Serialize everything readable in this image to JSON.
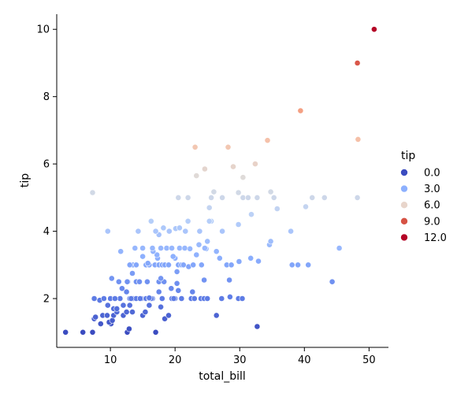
{
  "chart_data": {
    "type": "scatter",
    "xlabel": "total_bill",
    "ylabel": "tip",
    "xlim": [
      1.7,
      53.0
    ],
    "ylim": [
      0.55,
      10.45
    ],
    "xticks": [
      10,
      20,
      30,
      40,
      50
    ],
    "yticks": [
      2,
      4,
      6,
      8,
      10
    ],
    "grid": false,
    "hue": {
      "variable": "tip",
      "palette": "coolwarm",
      "range": [
        1.0,
        10.0
      ],
      "legend_title": "tip",
      "legend_placement": "right",
      "legend_entries": [
        {
          "label": "0.0",
          "value": 0.0,
          "color": "#3b4cc0"
        },
        {
          "label": "3.0",
          "value": 3.0,
          "color": "#8db0fe"
        },
        {
          "label": "6.0",
          "value": 6.0,
          "color": "#e8d5cb"
        },
        {
          "label": "9.0",
          "value": 9.0,
          "color": "#d65244"
        },
        {
          "label": "12.0",
          "value": 12.0,
          "color": "#b40426"
        }
      ]
    },
    "points": [
      [
        3.07,
        1.0
      ],
      [
        5.75,
        1.0
      ],
      [
        7.25,
        1.0
      ],
      [
        12.6,
        1.0
      ],
      [
        17.0,
        1.0
      ],
      [
        7.25,
        5.15
      ],
      [
        7.5,
        1.4
      ],
      [
        7.7,
        1.45
      ],
      [
        8.5,
        1.25
      ],
      [
        8.8,
        1.5
      ],
      [
        9.5,
        1.5
      ],
      [
        9.8,
        1.3
      ],
      [
        10.1,
        1.25
      ],
      [
        10.3,
        1.35
      ],
      [
        10.5,
        1.5
      ],
      [
        11.0,
        1.6
      ],
      [
        12.0,
        1.5
      ],
      [
        12.5,
        1.6
      ],
      [
        13.0,
        1.8
      ],
      [
        13.4,
        1.6
      ],
      [
        15.0,
        1.5
      ],
      [
        15.4,
        1.6
      ],
      [
        16.0,
        1.8
      ],
      [
        18.4,
        1.4
      ],
      [
        19.0,
        1.5
      ],
      [
        26.4,
        1.5
      ],
      [
        32.7,
        1.17
      ],
      [
        7.5,
        2.0
      ],
      [
        8.35,
        1.95
      ],
      [
        9.0,
        2.0
      ],
      [
        9.6,
        1.8
      ],
      [
        10.0,
        2.0
      ],
      [
        10.5,
        1.7
      ],
      [
        11.5,
        2.0
      ],
      [
        12.5,
        2.2
      ],
      [
        13.0,
        2.0
      ],
      [
        13.5,
        2.0
      ],
      [
        14.0,
        2.0
      ],
      [
        14.8,
        2.0
      ],
      [
        15.5,
        2.0
      ],
      [
        16.0,
        2.0
      ],
      [
        16.5,
        2.0
      ],
      [
        17.5,
        2.2
      ],
      [
        18.0,
        2.0
      ],
      [
        19.5,
        2.0
      ],
      [
        20.0,
        2.0
      ],
      [
        20.5,
        2.24
      ],
      [
        21.0,
        2.0
      ],
      [
        22.5,
        2.0
      ],
      [
        23.0,
        2.0
      ],
      [
        24.0,
        2.0
      ],
      [
        24.5,
        2.0
      ],
      [
        25.0,
        2.0
      ],
      [
        27.2,
        2.0
      ],
      [
        28.5,
        2.05
      ],
      [
        29.8,
        2.0
      ],
      [
        30.4,
        2.0
      ],
      [
        10.2,
        2.6
      ],
      [
        11.8,
        2.3
      ],
      [
        12.7,
        2.5
      ],
      [
        13.4,
        2.75
      ],
      [
        14.0,
        2.5
      ],
      [
        15.7,
        2.5
      ],
      [
        17.5,
        2.5
      ],
      [
        17.8,
        2.6
      ],
      [
        18.3,
        2.5
      ],
      [
        19.4,
        2.3
      ],
      [
        20.3,
        2.45
      ],
      [
        22.7,
        2.2
      ],
      [
        24.5,
        2.55
      ],
      [
        28.4,
        2.55
      ],
      [
        44.3,
        2.5
      ],
      [
        10.7,
        2.0
      ],
      [
        11.0,
        1.7
      ],
      [
        12.0,
        1.8
      ],
      [
        13.2,
        2.0
      ],
      [
        14.6,
        2.0
      ],
      [
        16.3,
        2.0
      ],
      [
        17.8,
        1.75
      ],
      [
        18.0,
        2.0
      ],
      [
        19.8,
        2.0
      ],
      [
        12.9,
        1.1
      ],
      [
        16.0,
        2.02
      ],
      [
        11.6,
        3.4
      ],
      [
        9.6,
        4.0
      ],
      [
        13.5,
        3.0
      ],
      [
        13.8,
        3.5
      ],
      [
        14.0,
        3.0
      ],
      [
        14.5,
        2.5
      ],
      [
        15.0,
        3.25
      ],
      [
        15.5,
        3.0
      ],
      [
        16.0,
        3.0
      ],
      [
        16.3,
        4.3
      ],
      [
        16.5,
        3.5
      ],
      [
        16.9,
        3.0
      ],
      [
        17.0,
        4.0
      ],
      [
        17.3,
        3.2
      ],
      [
        17.5,
        3.0
      ],
      [
        17.8,
        3.5
      ],
      [
        18.0,
        3.0
      ],
      [
        18.2,
        4.1
      ],
      [
        18.4,
        3.0
      ],
      [
        18.7,
        3.5
      ],
      [
        19.0,
        3.0
      ],
      [
        19.5,
        3.5
      ],
      [
        20.0,
        3.2
      ],
      [
        20.3,
        2.8
      ],
      [
        20.5,
        3.0
      ],
      [
        20.7,
        3.5
      ],
      [
        21.0,
        3.0
      ],
      [
        21.5,
        3.5
      ],
      [
        22.0,
        4.3
      ],
      [
        22.3,
        3.48
      ],
      [
        22.8,
        3.0
      ],
      [
        23.3,
        3.3
      ],
      [
        23.7,
        3.6
      ],
      [
        24.1,
        3.0
      ],
      [
        24.6,
        3.5
      ],
      [
        25.0,
        3.7
      ],
      [
        25.6,
        4.3
      ],
      [
        26.4,
        3.4
      ],
      [
        26.9,
        3.2
      ],
      [
        28.0,
        3.0
      ],
      [
        28.7,
        3.0
      ],
      [
        29.9,
        3.1
      ],
      [
        31.7,
        3.2
      ],
      [
        32.9,
        3.11
      ],
      [
        34.6,
        3.6
      ],
      [
        34.8,
        3.7
      ],
      [
        37.9,
        4.0
      ],
      [
        38.1,
        3.0
      ],
      [
        39.0,
        3.0
      ],
      [
        40.6,
        3.0
      ],
      [
        45.4,
        3.5
      ],
      [
        29.8,
        4.2
      ],
      [
        31.8,
        4.5
      ],
      [
        27.3,
        4.0
      ],
      [
        23.8,
        4.0
      ],
      [
        20.7,
        4.1
      ],
      [
        21.6,
        4.0
      ],
      [
        17.5,
        3.9
      ],
      [
        19.1,
        4.0
      ],
      [
        15.0,
        3.5
      ],
      [
        14.3,
        4.0
      ],
      [
        12.6,
        2.5
      ],
      [
        11.3,
        2.5
      ],
      [
        13.0,
        3.0
      ],
      [
        15.8,
        3.05
      ],
      [
        16.6,
        3.4
      ],
      [
        17.2,
        3.3
      ],
      [
        19.7,
        3.25
      ],
      [
        20.1,
        4.08
      ],
      [
        21.3,
        3.0
      ],
      [
        22.1,
        2.95
      ],
      [
        24.8,
        3.48
      ],
      [
        20.5,
        5.0
      ],
      [
        22.0,
        5.0
      ],
      [
        25.3,
        4.7
      ],
      [
        25.6,
        5.0
      ],
      [
        26.0,
        5.17
      ],
      [
        27.3,
        5.0
      ],
      [
        29.8,
        5.15
      ],
      [
        30.5,
        5.0
      ],
      [
        31.3,
        5.0
      ],
      [
        32.7,
        5.0
      ],
      [
        34.8,
        5.17
      ],
      [
        35.3,
        5.0
      ],
      [
        35.8,
        4.67
      ],
      [
        40.2,
        4.73
      ],
      [
        41.2,
        5.0
      ],
      [
        43.1,
        5.0
      ],
      [
        48.2,
        5.0
      ],
      [
        25.3,
        4.3
      ],
      [
        23.3,
        5.65
      ],
      [
        24.6,
        5.85
      ],
      [
        30.5,
        5.6
      ],
      [
        23.1,
        6.5
      ],
      [
        28.2,
        6.5
      ],
      [
        29.0,
        5.92
      ],
      [
        32.4,
        6.0
      ],
      [
        34.3,
        6.7
      ],
      [
        48.3,
        6.73
      ],
      [
        39.4,
        7.58
      ],
      [
        48.2,
        9.0
      ],
      [
        50.8,
        10.0
      ]
    ]
  }
}
